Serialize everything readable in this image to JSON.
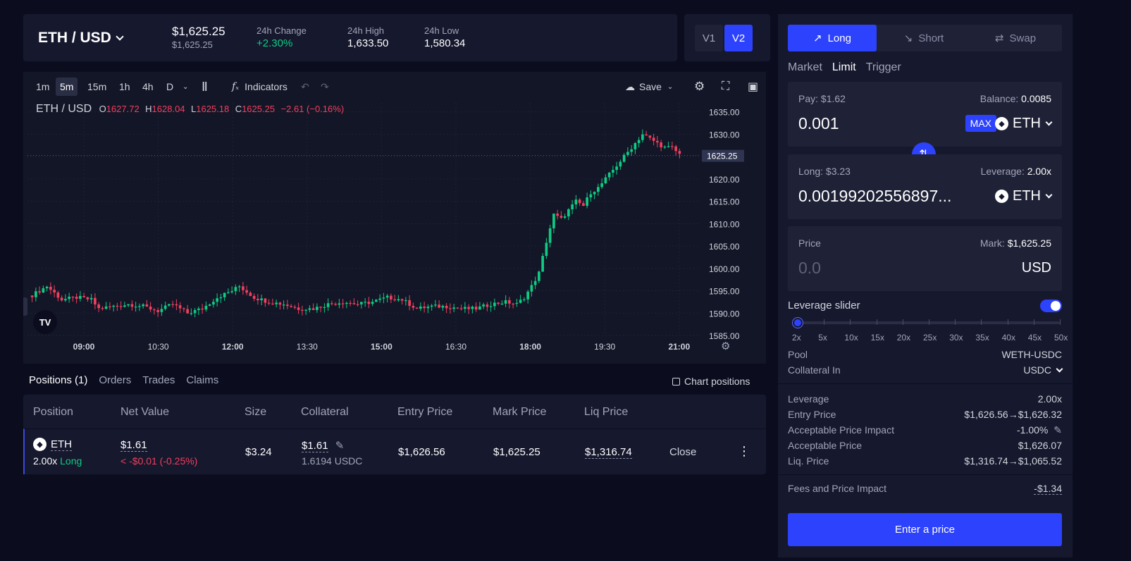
{
  "header": {
    "pair": "ETH / USD",
    "price": "$1,625.25",
    "price_sub": "$1,625.25",
    "change_label": "24h Change",
    "change_value": "+2.30%",
    "high_label": "24h High",
    "high_value": "1,633.50",
    "low_label": "24h Low",
    "low_value": "1,580.34"
  },
  "versions": [
    "V1",
    "V2"
  ],
  "chart": {
    "timeframes": [
      "1m",
      "5m",
      "15m",
      "1h",
      "4h",
      "D"
    ],
    "active_timeframe": "5m",
    "indicators_label": "Indicators",
    "save_label": "Save",
    "legend": {
      "pair": "ETH / USD",
      "o_label": "O",
      "o_value": "1627.72",
      "h_label": "H",
      "h_value": "1628.04",
      "l_label": "L",
      "l_value": "1625.18",
      "c_label": "C",
      "c_value": "1625.25",
      "change": "−2.61 (−0.16%)"
    },
    "current_price_tag": "1625.25"
  },
  "chart_data": {
    "type": "candlestick",
    "ylim": [
      1585,
      1637
    ],
    "y_ticks": [
      "1635.00",
      "1630.00",
      "1625.00",
      "1620.00",
      "1615.00",
      "1610.00",
      "1605.00",
      "1600.00",
      "1595.00",
      "1590.00",
      "1585.00"
    ],
    "x_ticks": [
      {
        "label": "09:00",
        "bold": true
      },
      {
        "label": "10:30",
        "bold": false
      },
      {
        "label": "12:00",
        "bold": true
      },
      {
        "label": "13:30",
        "bold": false
      },
      {
        "label": "15:00",
        "bold": true
      },
      {
        "label": "16:30",
        "bold": false
      },
      {
        "label": "18:00",
        "bold": true
      },
      {
        "label": "19:30",
        "bold": false
      },
      {
        "label": "21:00",
        "bold": true
      }
    ],
    "anchors": [
      [
        0,
        1594
      ],
      [
        4,
        1596
      ],
      [
        8,
        1593
      ],
      [
        12,
        1593.5
      ],
      [
        16,
        1593
      ],
      [
        18,
        1591
      ],
      [
        22,
        1591.5
      ],
      [
        26,
        1592
      ],
      [
        30,
        1591.5
      ],
      [
        34,
        1590.5
      ],
      [
        38,
        1592
      ],
      [
        42,
        1590
      ],
      [
        46,
        1591
      ],
      [
        50,
        1593.5
      ],
      [
        54,
        1595
      ],
      [
        56,
        1596
      ],
      [
        60,
        1593.5
      ],
      [
        64,
        1592.5
      ],
      [
        68,
        1592
      ],
      [
        72,
        1591
      ],
      [
        76,
        1591
      ],
      [
        80,
        1592
      ],
      [
        84,
        1592.5
      ],
      [
        88,
        1592
      ],
      [
        92,
        1592.5
      ],
      [
        96,
        1593.5
      ],
      [
        100,
        1593
      ],
      [
        104,
        1591
      ],
      [
        108,
        1591.5
      ],
      [
        112,
        1591.5
      ],
      [
        116,
        1591
      ],
      [
        120,
        1591
      ],
      [
        124,
        1592
      ],
      [
        128,
        1592.5
      ],
      [
        131,
        1592
      ],
      [
        133,
        1593.5
      ],
      [
        135,
        1596
      ],
      [
        137,
        1599
      ],
      [
        139,
        1606
      ],
      [
        141,
        1612
      ],
      [
        143,
        1611
      ],
      [
        145,
        1613
      ],
      [
        147,
        1615
      ],
      [
        149,
        1614
      ],
      [
        151,
        1617
      ],
      [
        153,
        1618
      ],
      [
        155,
        1620
      ],
      [
        157,
        1622
      ],
      [
        159,
        1624
      ],
      [
        161,
        1626
      ],
      [
        163,
        1628
      ],
      [
        165,
        1630
      ],
      [
        167,
        1629
      ],
      [
        169,
        1628
      ],
      [
        171,
        1627
      ],
      [
        173,
        1627
      ],
      [
        175,
        1625.5
      ]
    ]
  },
  "bottom_tabs": [
    "Positions (1)",
    "Orders",
    "Trades",
    "Claims"
  ],
  "chart_positions_label": "Chart positions",
  "positions": {
    "headers": [
      "Position",
      "Net Value",
      "Size",
      "Collateral",
      "Entry Price",
      "Mark Price",
      "Liq Price"
    ],
    "row": {
      "token": "ETH",
      "leverage": "2.00x",
      "side": "Long",
      "net_value": "$1.61",
      "net_change": "< -$0.01 (-0.25%)",
      "size": "$3.24",
      "collateral": "$1.61",
      "collateral_sub": "1.6194 USDC",
      "entry_price": "$1,626.56",
      "mark_price": "$1,625.25",
      "liq_price": "$1,316.74",
      "close_label": "Close"
    }
  },
  "trade": {
    "modes": [
      "Long",
      "Short",
      "Swap"
    ],
    "order_types": [
      "Market",
      "Limit",
      "Trigger"
    ],
    "active_order_type": "Limit",
    "pay_label": "Pay: $1.62",
    "balance_label": "Balance:",
    "balance_value": "0.0085",
    "pay_amount": "0.001",
    "max_label": "MAX",
    "pay_token": "ETH",
    "long_label": "Long: $3.23",
    "leverage_label": "Leverage:",
    "leverage_value": "2.00x",
    "long_amount": "0.00199202556897...",
    "long_token": "ETH",
    "price_label": "Price",
    "mark_label": "Mark:",
    "mark_value": "$1,625.25",
    "price_placeholder": "0.0",
    "price_unit": "USD",
    "leverage_slider_label": "Leverage slider",
    "leverage_slider_value": 2,
    "slider_marks": [
      "2x",
      "5x",
      "10x",
      "15x",
      "20x",
      "25x",
      "30x",
      "35x",
      "40x",
      "45x",
      "50x"
    ],
    "pool_label": "Pool",
    "pool_value": "WETH-USDC",
    "collateral_label": "Collateral In",
    "collateral_value": "USDC",
    "details": [
      {
        "label": "Leverage",
        "value": "2.00x"
      },
      {
        "label": "Entry Price",
        "value": "$1,626.56→$1,626.32"
      },
      {
        "label": "Acceptable Price Impact",
        "value": "-1.00%"
      },
      {
        "label": "Acceptable Price",
        "value": "$1,626.07"
      },
      {
        "label": "Liq. Price",
        "value": "$1,316.74→$1,065.52"
      }
    ],
    "fees_label": "Fees and Price Impact",
    "fees_value": "-$1.34",
    "submit_label": "Enter a price"
  },
  "colors": {
    "accent": "#2d42fc",
    "up": "#0ecc83",
    "down": "#f23f5d",
    "background": "#0b0d1f",
    "panel": "#16182e"
  }
}
